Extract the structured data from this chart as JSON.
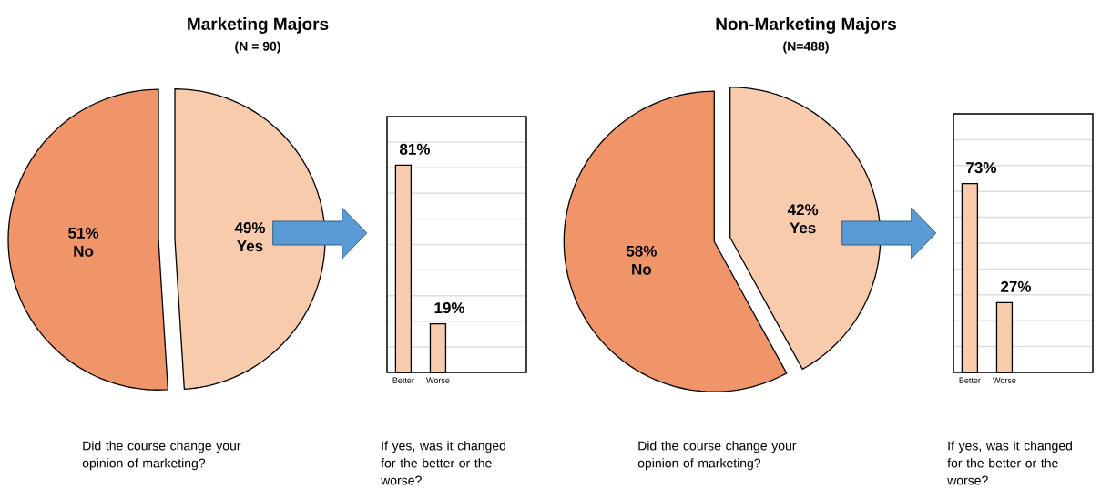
{
  "chart_data": [
    {
      "type": "pie",
      "title": "Marketing Majors",
      "subtitle": "(N = 90)",
      "categories": [
        "No",
        "Yes"
      ],
      "values": [
        51,
        49
      ],
      "colors": [
        "#f0956a",
        "#f8cbad"
      ],
      "value_labels": [
        "51%",
        "49%"
      ],
      "annotations": [
        "Did the course change your opinion of marketing?"
      ]
    },
    {
      "type": "bar",
      "categories": [
        "Better",
        "Worse"
      ],
      "values": [
        81,
        19
      ],
      "color": "#f8cbad",
      "ylim": [
        0,
        100
      ],
      "yticks": [
        {
          "value": 0,
          "label": null
        },
        {
          "value": 10,
          "label": null
        },
        {
          "value": 20,
          "label": null
        },
        {
          "value": 30,
          "label": null
        },
        {
          "value": 40,
          "label": null
        },
        {
          "value": 50,
          "label": null
        },
        {
          "value": 60,
          "label": null
        },
        {
          "value": 70,
          "label": null
        },
        {
          "value": 80,
          "label": null
        },
        {
          "value": 90,
          "label": null
        },
        {
          "value": 100,
          "label": null
        }
      ],
      "grid": "y",
      "tick_labels": "x",
      "value_labels": [
        "81%",
        "19%"
      ],
      "annotations": [
        "If yes, was it changed for the better or the worse?"
      ]
    },
    {
      "type": "pie",
      "title": "Non-Marketing Majors",
      "subtitle": "(N=488)",
      "categories": [
        "No",
        "Yes"
      ],
      "values": [
        58,
        42
      ],
      "colors": [
        "#f0956a",
        "#f8cbad"
      ],
      "value_labels": [
        "58%",
        "42%"
      ],
      "annotations": [
        "Did the course change your opinion of marketing?"
      ]
    },
    {
      "type": "bar",
      "categories": [
        "Better",
        "Worse"
      ],
      "values": [
        73,
        27
      ],
      "color": "#f8cbad",
      "ylim": [
        0,
        100
      ],
      "yticks": [
        {
          "value": 0,
          "label": null
        },
        {
          "value": 10,
          "label": null
        },
        {
          "value": 20,
          "label": null
        },
        {
          "value": 30,
          "label": null
        },
        {
          "value": 40,
          "label": null
        },
        {
          "value": 50,
          "label": null
        },
        {
          "value": 60,
          "label": null
        },
        {
          "value": 70,
          "label": null
        },
        {
          "value": 80,
          "label": null
        },
        {
          "value": 90,
          "label": null
        },
        {
          "value": 100,
          "label": null
        }
      ],
      "grid": "y",
      "tick_labels": "x",
      "value_labels": [
        "73%",
        "27%"
      ],
      "annotations": [
        "If yes, was it changed for the better or the worse?"
      ]
    }
  ]
}
